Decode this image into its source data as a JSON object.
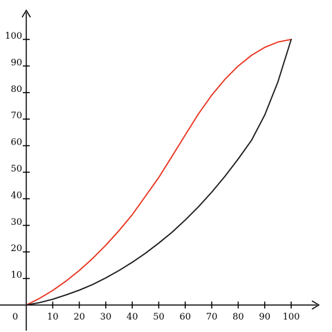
{
  "chart_data": {
    "type": "line",
    "title": "",
    "xlabel": "",
    "ylabel": "",
    "xlim": [
      0,
      100
    ],
    "ylim": [
      0,
      100
    ],
    "origin_label": "0",
    "x_ticks": [
      10,
      20,
      30,
      40,
      50,
      60,
      70,
      80,
      90,
      100
    ],
    "y_ticks": [
      10,
      20,
      30,
      40,
      50,
      60,
      70,
      80,
      90,
      100
    ],
    "x_tick_labels": [
      "10",
      "20",
      "30",
      "40",
      "50",
      "60",
      "70",
      "80",
      "90",
      "100"
    ],
    "y_tick_labels": [
      "10",
      "20",
      "30",
      "40",
      "50",
      "60",
      "70",
      "80",
      "90",
      "100"
    ],
    "grid": false,
    "legend": "none",
    "series": [
      {
        "color": "#e8321e",
        "x": [
          0,
          5,
          10,
          15,
          20,
          25,
          30,
          35,
          40,
          45,
          50,
          55,
          60,
          65,
          70,
          75,
          80,
          85,
          90,
          95,
          100
        ],
        "y": [
          0,
          2.5,
          5.5,
          9,
          13,
          17.5,
          22.5,
          28,
          34,
          41,
          48,
          56,
          64,
          72,
          79,
          85,
          90,
          94,
          97,
          99,
          100
        ]
      },
      {
        "color": "#1a1a1a",
        "x": [
          0,
          5,
          10,
          15,
          20,
          25,
          30,
          35,
          40,
          45,
          50,
          55,
          60,
          65,
          70,
          75,
          80,
          85,
          90,
          95,
          100
        ],
        "y": [
          0,
          0.9,
          2.2,
          3.8,
          5.6,
          7.7,
          10.2,
          13,
          16.1,
          19.5,
          23.3,
          27.4,
          32,
          37,
          42.5,
          48.5,
          55,
          62,
          71.5,
          84,
          100
        ]
      }
    ]
  }
}
